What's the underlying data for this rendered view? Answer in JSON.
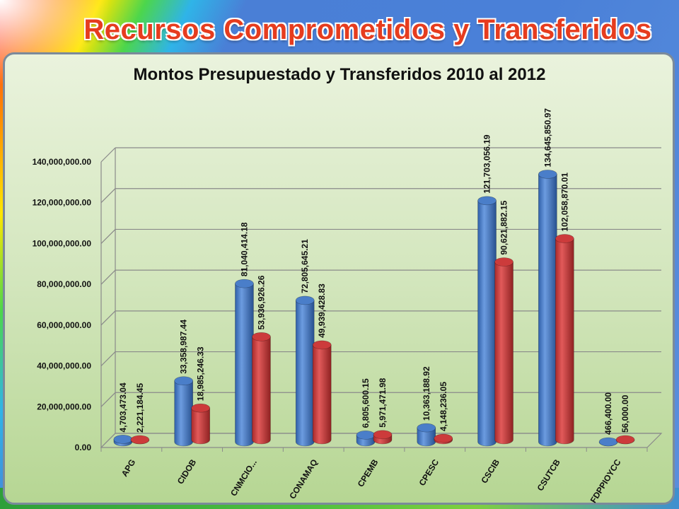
{
  "slide": {
    "title": "Recursos Comprometidos y Transferidos"
  },
  "colors": {
    "series1": "#4a7ec9",
    "series2": "#cc3b3b",
    "grid": "#8a8a8a"
  },
  "chart_data": {
    "type": "bar",
    "title": "Montos Presupuestado y Transferidos 2010 al 2012",
    "xlabel": "",
    "ylabel": "",
    "ylim": [
      0,
      140000000
    ],
    "grid": true,
    "yticks": [
      "0.00",
      "20,000,000.00",
      "40,000,000.00",
      "60,000,000.00",
      "80,000,000.00",
      "100,000,000.00",
      "120,000,000.00",
      "140,000,000.00"
    ],
    "categories": [
      "APG",
      "CIDOB",
      "CNMCIO...",
      "CONAMAQ",
      "CPEMB",
      "CPESC",
      "CSCIB",
      "CSUTCB",
      "FDPPIOYCC"
    ],
    "series": [
      {
        "values": [
          4703473.04,
          33358987.44,
          81040414.18,
          72805645.21,
          6805600.15,
          10363188.92,
          121703056.19,
          134645850.97,
          466400.0
        ],
        "labels": [
          "4,703,473.04",
          "33,358,987.44",
          "81,040,414.18",
          "72,805,645.21",
          "6,805,600.15",
          "10,363,188.92",
          "121,703,056.19",
          "134,645,850.97",
          "466,400.00"
        ]
      },
      {
        "values": [
          2221184.45,
          18985246.33,
          53936926.26,
          49939428.83,
          5971471.98,
          4148236.05,
          90621882.15,
          102058870.01,
          56000.0
        ],
        "labels": [
          "2,221,184.45",
          "18,985,246.33",
          "53,936,926.26",
          "49,939,428.83",
          "5,971,471.98",
          "4,148,236.05",
          "90,621,882.15",
          "102,058,870.01",
          "56,000.00"
        ]
      }
    ]
  }
}
